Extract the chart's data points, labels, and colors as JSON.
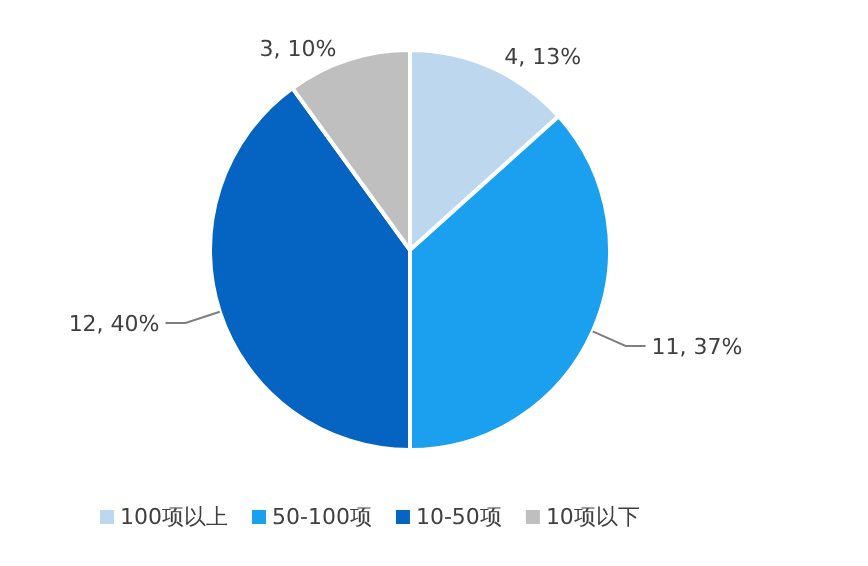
{
  "chart_data": {
    "type": "pie",
    "categories": [
      "100项以上",
      "50-100项",
      "10-50项",
      "10项以下"
    ],
    "values": [
      4,
      11,
      12,
      3
    ],
    "value_labels": [
      "4, 13%",
      "11, 37%",
      "12, 40%",
      "3, 10%"
    ],
    "colors": [
      "#bdd7ee",
      "#1aa0ee",
      "#0563c1",
      "#bfbfbf"
    ],
    "legend": "bottom"
  }
}
